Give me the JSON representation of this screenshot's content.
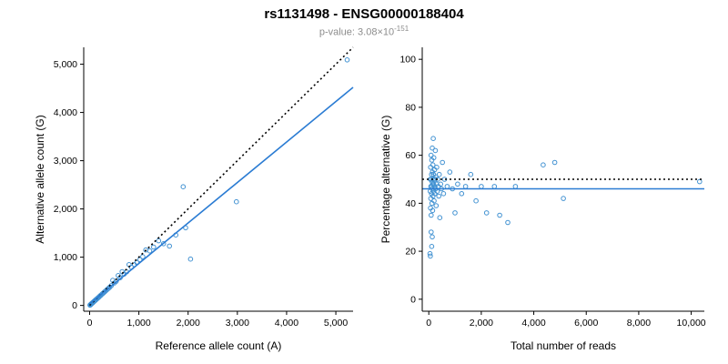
{
  "header": {
    "title": "rs1131498 - ENSG00000188404",
    "pvalue_label": "p-value: ",
    "pvalue_base": "3.08×10",
    "pvalue_exponent": "-151"
  },
  "colors": {
    "point": "#4292d2",
    "fit_line": "#2b7cd3",
    "reference_line": "#000000",
    "axis": "#000000",
    "subtitle": "#8c8c8c"
  },
  "chart_data": [
    {
      "type": "scatter",
      "title": "",
      "xlabel": "Reference allele count (A)",
      "ylabel": "Alternative allele count (G)",
      "xlim": [
        -120,
        5350
      ],
      "ylim": [
        -120,
        5350
      ],
      "xticks": [
        0,
        1000,
        2000,
        3000,
        4000,
        5000
      ],
      "xtick_labels": [
        "0",
        "1,000",
        "2,000",
        "3,000",
        "4,000",
        "5,000"
      ],
      "yticks": [
        0,
        1000,
        2000,
        3000,
        4000,
        5000
      ],
      "ytick_labels": [
        "0",
        "1,000",
        "2,000",
        "3,000",
        "4,000",
        "5,000"
      ],
      "grid": false,
      "legend": false,
      "lines": [
        {
          "name": "identity-line",
          "style": "dotted",
          "color": "#000000",
          "width": 1.6,
          "x": [
            0,
            5350
          ],
          "y": [
            0,
            5350
          ]
        },
        {
          "name": "regression-line",
          "style": "solid",
          "color": "#2b7cd3",
          "width": 1.6,
          "x": [
            0,
            5350
          ],
          "y": [
            30,
            4520
          ]
        }
      ],
      "points": [
        [
          8,
          6
        ],
        [
          12,
          10
        ],
        [
          15,
          13
        ],
        [
          18,
          16
        ],
        [
          22,
          20
        ],
        [
          26,
          24
        ],
        [
          30,
          27
        ],
        [
          34,
          30
        ],
        [
          40,
          36
        ],
        [
          45,
          42
        ],
        [
          50,
          46
        ],
        [
          58,
          52
        ],
        [
          65,
          60
        ],
        [
          72,
          66
        ],
        [
          80,
          74
        ],
        [
          88,
          82
        ],
        [
          95,
          88
        ],
        [
          105,
          98
        ],
        [
          115,
          106
        ],
        [
          125,
          115
        ],
        [
          135,
          125
        ],
        [
          148,
          136
        ],
        [
          160,
          148
        ],
        [
          172,
          160
        ],
        [
          185,
          170
        ],
        [
          200,
          186
        ],
        [
          215,
          200
        ],
        [
          230,
          212
        ],
        [
          250,
          232
        ],
        [
          270,
          250
        ],
        [
          290,
          268
        ],
        [
          310,
          288
        ],
        [
          335,
          310
        ],
        [
          360,
          335
        ],
        [
          385,
          355
        ],
        [
          410,
          380
        ],
        [
          440,
          410
        ],
        [
          470,
          520
        ],
        [
          500,
          465
        ],
        [
          540,
          500
        ],
        [
          580,
          620
        ],
        [
          620,
          575
        ],
        [
          660,
          700
        ],
        [
          700,
          650
        ],
        [
          750,
          695
        ],
        [
          800,
          845
        ],
        [
          850,
          790
        ],
        [
          910,
          845
        ],
        [
          960,
          890
        ],
        [
          1020,
          950
        ],
        [
          1080,
          1010
        ],
        [
          1140,
          1150
        ],
        [
          1220,
          1130
        ],
        [
          1300,
          1210
        ],
        [
          1400,
          1340
        ],
        [
          1500,
          1280
        ],
        [
          1620,
          1230
        ],
        [
          1750,
          1460
        ],
        [
          1900,
          2460
        ],
        [
          1950,
          1610
        ],
        [
          2050,
          960
        ],
        [
          2980,
          2150
        ],
        [
          5230,
          5090
        ]
      ]
    },
    {
      "type": "scatter",
      "title": "",
      "xlabel": "Total number of reads",
      "ylabel": "Percentage alternative (G)",
      "xlim": [
        -250,
        10500
      ],
      "ylim": [
        -5,
        105
      ],
      "xticks": [
        0,
        2000,
        4000,
        6000,
        8000,
        10000
      ],
      "xtick_labels": [
        "0",
        "2,000",
        "4,000",
        "6,000",
        "8,000",
        "10,000"
      ],
      "yticks": [
        0,
        20,
        40,
        60,
        80,
        100
      ],
      "ytick_labels": [
        "0",
        "20",
        "40",
        "60",
        "80",
        "100"
      ],
      "grid": false,
      "legend": false,
      "lines": [
        {
          "name": "fifty-percent-line",
          "style": "dotted",
          "color": "#000000",
          "width": 1.6,
          "x": [
            -250,
            10500
          ],
          "y": [
            50,
            50
          ]
        },
        {
          "name": "mean-percentage-line",
          "style": "solid",
          "color": "#2b7cd3",
          "width": 1.6,
          "x": [
            -250,
            10500
          ],
          "y": [
            46,
            46
          ]
        }
      ],
      "points": [
        [
          45,
          19
        ],
        [
          60,
          18
        ],
        [
          55,
          45
        ],
        [
          60,
          50
        ],
        [
          65,
          38
        ],
        [
          70,
          55
        ],
        [
          75,
          42
        ],
        [
          80,
          47
        ],
        [
          85,
          60
        ],
        [
          90,
          35
        ],
        [
          90,
          28
        ],
        [
          95,
          50
        ],
        [
          100,
          44
        ],
        [
          105,
          52
        ],
        [
          110,
          47
        ],
        [
          110,
          22
        ],
        [
          115,
          58
        ],
        [
          120,
          40
        ],
        [
          125,
          49
        ],
        [
          130,
          63
        ],
        [
          130,
          26
        ],
        [
          135,
          46
        ],
        [
          140,
          53
        ],
        [
          145,
          37
        ],
        [
          150,
          48
        ],
        [
          155,
          56
        ],
        [
          160,
          43
        ],
        [
          165,
          50
        ],
        [
          170,
          67
        ],
        [
          175,
          45
        ],
        [
          180,
          52
        ],
        [
          185,
          48
        ],
        [
          190,
          59
        ],
        [
          200,
          41
        ],
        [
          210,
          47
        ],
        [
          220,
          54
        ],
        [
          230,
          44
        ],
        [
          240,
          50
        ],
        [
          250,
          62
        ],
        [
          260,
          46
        ],
        [
          270,
          51
        ],
        [
          280,
          39
        ],
        [
          290,
          48
        ],
        [
          300,
          55
        ],
        [
          320,
          45
        ],
        [
          340,
          50
        ],
        [
          360,
          47
        ],
        [
          380,
          43
        ],
        [
          400,
          52
        ],
        [
          420,
          34
        ],
        [
          450,
          48
        ],
        [
          480,
          46
        ],
        [
          520,
          57
        ],
        [
          560,
          44
        ],
        [
          600,
          50
        ],
        [
          700,
          47
        ],
        [
          800,
          53
        ],
        [
          900,
          46
        ],
        [
          1000,
          36
        ],
        [
          1100,
          48
        ],
        [
          1250,
          44
        ],
        [
          1400,
          47
        ],
        [
          1600,
          52
        ],
        [
          1800,
          41
        ],
        [
          2000,
          47
        ],
        [
          2200,
          36
        ],
        [
          2500,
          47
        ],
        [
          2700,
          35
        ],
        [
          3010,
          32
        ],
        [
          3300,
          47
        ],
        [
          4360,
          56
        ],
        [
          4800,
          57
        ],
        [
          5130,
          42
        ],
        [
          10320,
          49
        ]
      ]
    }
  ]
}
